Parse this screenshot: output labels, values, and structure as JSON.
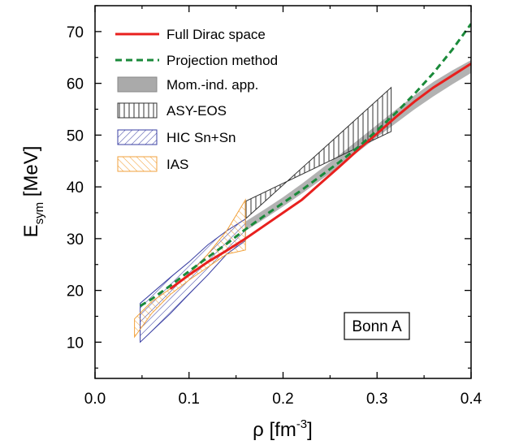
{
  "chart_data": {
    "type": "line",
    "xlabel": {
      "base": "ρ [fm",
      "sup": "-3",
      "tail": "]"
    },
    "ylabel": {
      "base": "E",
      "sub": "sym",
      "tail": " [MeV]"
    },
    "xlim": [
      0.0,
      0.4
    ],
    "ylim": [
      3,
      75
    ],
    "x_ticks": [
      0.0,
      0.1,
      0.2,
      0.3,
      0.4
    ],
    "x_tick_labels": [
      "0.0",
      "0.1",
      "0.2",
      "0.3",
      "0.4"
    ],
    "y_ticks": [
      10,
      20,
      30,
      40,
      50,
      60,
      70
    ],
    "y_tick_labels": [
      "10",
      "20",
      "30",
      "40",
      "50",
      "60",
      "70"
    ],
    "grid": false,
    "legend_position": "top-left",
    "annotation": "Bonn A",
    "series": [
      {
        "name": "Full Dirac space",
        "kind": "line",
        "color": "#e8201e",
        "style": "solid",
        "x": [
          0.08,
          0.1,
          0.12,
          0.14,
          0.16,
          0.18,
          0.2,
          0.22,
          0.24,
          0.26,
          0.28,
          0.3,
          0.32,
          0.34,
          0.36,
          0.38,
          0.4
        ],
        "y": [
          20.3,
          23.0,
          25.5,
          27.7,
          30.0,
          32.5,
          35.0,
          37.5,
          40.7,
          43.9,
          47.2,
          50.3,
          53.5,
          56.5,
          59.2,
          61.5,
          63.8
        ]
      },
      {
        "name": "Projection method",
        "kind": "line",
        "color": "#1a8a3a",
        "style": "dashed",
        "x": [
          0.048,
          0.06,
          0.08,
          0.1,
          0.12,
          0.14,
          0.16,
          0.18,
          0.2,
          0.22,
          0.24,
          0.26,
          0.28,
          0.3,
          0.32,
          0.34,
          0.36,
          0.38,
          0.4
        ],
        "y": [
          17.0,
          18.3,
          20.9,
          23.7,
          26.4,
          29.0,
          31.8,
          34.4,
          36.9,
          39.4,
          42.1,
          44.8,
          47.7,
          50.9,
          54.3,
          58.0,
          62.0,
          66.5,
          71.5
        ]
      },
      {
        "name": "Mom.-ind. app.",
        "kind": "band",
        "color": "#aaaaaa",
        "x": [
          0.16,
          0.18,
          0.2,
          0.22,
          0.24,
          0.26,
          0.28,
          0.3,
          0.32,
          0.34,
          0.36,
          0.38,
          0.4
        ],
        "upper": [
          33.3,
          35.6,
          38.0,
          40.6,
          43.4,
          46.2,
          49.1,
          52.0,
          54.9,
          57.7,
          60.3,
          62.5,
          64.5
        ],
        "lower": [
          31.5,
          33.8,
          36.2,
          38.7,
          41.3,
          44.0,
          46.8,
          49.6,
          52.3,
          55.0,
          57.5,
          59.8,
          62.0
        ]
      },
      {
        "name": "ASY-EOS",
        "kind": "hatched-region",
        "color": "#333333",
        "hatch": "vertical",
        "polygon": [
          [
            0.16,
            33.8
          ],
          [
            0.315,
            59.2
          ],
          [
            0.315,
            50.7
          ],
          [
            0.16,
            37.2
          ]
        ]
      },
      {
        "name": "HIC Sn+Sn",
        "kind": "hatched-region",
        "color": "#3a3fa3",
        "hatch": "diagonal",
        "polygon": [
          [
            0.048,
            17.5
          ],
          [
            0.08,
            22.5
          ],
          [
            0.1,
            25.5
          ],
          [
            0.12,
            28.8
          ],
          [
            0.14,
            31.5
          ],
          [
            0.16,
            33.8
          ],
          [
            0.16,
            29.6
          ],
          [
            0.14,
            27.0
          ],
          [
            0.12,
            23.0
          ],
          [
            0.1,
            19.3
          ],
          [
            0.08,
            15.5
          ],
          [
            0.048,
            10.0
          ]
        ]
      },
      {
        "name": "IAS",
        "kind": "hatched-region",
        "color": "#f2a23c",
        "hatch": "diagonal",
        "polygon": [
          [
            0.042,
            14.5
          ],
          [
            0.06,
            17.8
          ],
          [
            0.08,
            20.3
          ],
          [
            0.1,
            23.0
          ],
          [
            0.12,
            27.0
          ],
          [
            0.14,
            31.5
          ],
          [
            0.16,
            37.5
          ],
          [
            0.16,
            27.8
          ],
          [
            0.14,
            27.0
          ],
          [
            0.12,
            24.5
          ],
          [
            0.1,
            22.0
          ],
          [
            0.08,
            19.2
          ],
          [
            0.06,
            15.5
          ],
          [
            0.042,
            11.0
          ]
        ]
      }
    ]
  }
}
